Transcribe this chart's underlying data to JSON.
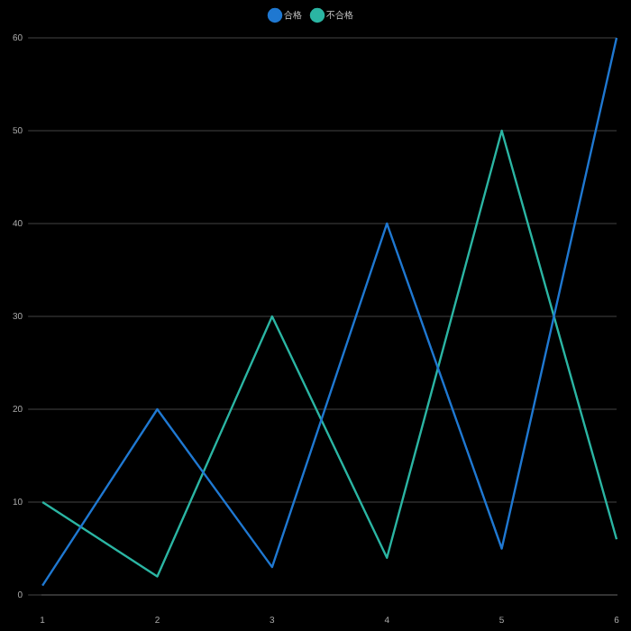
{
  "chart_data": {
    "type": "line",
    "categories": [
      "1",
      "2",
      "3",
      "4",
      "5",
      "6"
    ],
    "series": [
      {
        "name": "合格",
        "color": "#1f78d1",
        "values": [
          1,
          20,
          3,
          40,
          5,
          60
        ]
      },
      {
        "name": "不合格",
        "color": "#2bb5a3",
        "values": [
          10,
          2,
          30,
          4,
          50,
          6
        ]
      }
    ],
    "ylim": [
      0,
      60
    ],
    "yticks": [
      0,
      10,
      20,
      30,
      40,
      50,
      60
    ],
    "grid": "y",
    "legend": "top",
    "marker": "none",
    "line_style": "solid"
  }
}
